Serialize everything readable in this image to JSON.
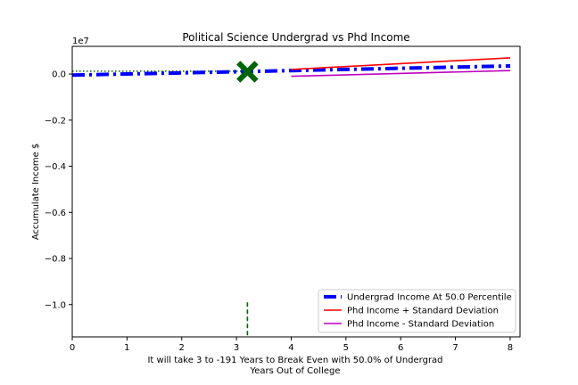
{
  "chart_data": {
    "type": "line",
    "title": "Political Science Undergrad vs Phd Income",
    "xlabel_lines": [
      "It will take 3 to -191 Years to Break Even with 50.0% of Undergrad",
      "Years Out of College"
    ],
    "ylabel": "Accumulate Income $",
    "y_offset_label": "1e7",
    "xlim": [
      0,
      8.18
    ],
    "ylim": [
      -1.14,
      0.12
    ],
    "xticks": [
      0,
      1,
      2,
      3,
      4,
      5,
      6,
      7,
      8
    ],
    "xtick_labels": [
      "0",
      "1",
      "2",
      "3",
      "4",
      "5",
      "6",
      "7",
      "8"
    ],
    "yticks": [
      0.0,
      -0.2,
      -0.4,
      -0.6,
      -0.8,
      -1.0
    ],
    "ytick_labels": [
      "0.0",
      "−0.2",
      "−0.4",
      "−0.6",
      "−0.8",
      "−1.0"
    ],
    "series": [
      {
        "name": "Undergrad Income At 50.0 Percentile",
        "color": "#0000ff",
        "style": "dashdot",
        "x": [
          0,
          1,
          2,
          3,
          4,
          5,
          6,
          7,
          8
        ],
        "y": [
          -0.005,
          0.0,
          0.005,
          0.01,
          0.015,
          0.02,
          0.025,
          0.03,
          0.035
        ]
      },
      {
        "name": "Phd Income + Standard Deviation",
        "color": "#ff0000",
        "style": "solid",
        "x": [
          4,
          8
        ],
        "y": [
          0.02,
          0.07
        ]
      },
      {
        "name": "Phd Income - Standard Deviation",
        "color": "#bf00bf",
        "style": "solid",
        "x": [
          4,
          8
        ],
        "y": [
          -0.01,
          0.015
        ]
      }
    ],
    "extra_lines": [
      {
        "role": "dotted-reference",
        "color": "#006400",
        "style": "dotted",
        "x": [
          0,
          3.2
        ],
        "y": [
          0.012,
          0.012
        ]
      },
      {
        "role": "break-even-vertical",
        "color": "#006400",
        "style": "dashed",
        "x": [
          3.2,
          3.2
        ],
        "y": [
          -0.99,
          -1.14
        ]
      }
    ],
    "markers": [
      {
        "role": "break-even-marker",
        "shape": "X",
        "color": "#006400",
        "x": 3.2,
        "y": 0.01
      }
    ],
    "legend_position": "lower-right",
    "grid": false
  }
}
